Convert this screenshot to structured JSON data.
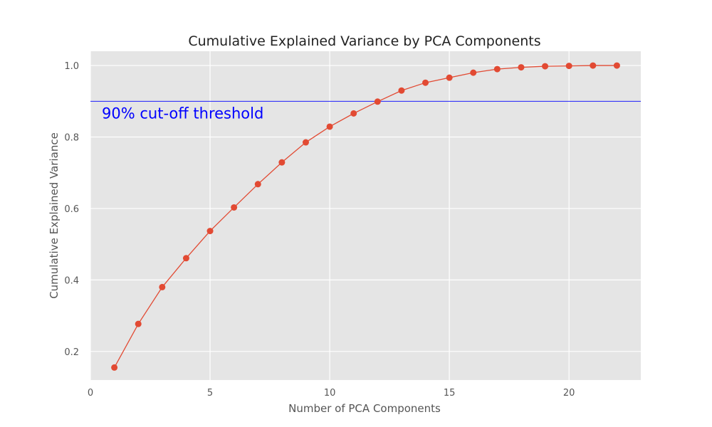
{
  "chart_data": {
    "type": "line",
    "title": "Cumulative Explained Variance by PCA Components",
    "xlabel": "Number of PCA Components",
    "ylabel": "Cumulative Explained Variance",
    "xlim": [
      0,
      23
    ],
    "ylim": [
      0.12,
      1.04
    ],
    "xticks": [
      0,
      5,
      10,
      15,
      20
    ],
    "yticks": [
      0.2,
      0.4,
      0.6,
      0.8,
      1.0
    ],
    "ytick_labels": [
      "0.2",
      "0.4",
      "0.6",
      "0.8",
      "1.0"
    ],
    "grid": true,
    "x": [
      1,
      2,
      3,
      4,
      5,
      6,
      7,
      8,
      9,
      10,
      11,
      12,
      13,
      14,
      15,
      16,
      17,
      18,
      19,
      20,
      21,
      22
    ],
    "series": [
      {
        "values": [
          0.155,
          0.277,
          0.38,
          0.461,
          0.537,
          0.603,
          0.668,
          0.729,
          0.785,
          0.829,
          0.866,
          0.899,
          0.93,
          0.952,
          0.966,
          0.98,
          0.99,
          0.995,
          0.998,
          0.999,
          1.0,
          1.0
        ],
        "color": "#E24A33"
      }
    ],
    "threshold": {
      "value": 0.9,
      "label": "90% cut-off threshold",
      "color": "#0000ff"
    },
    "background_color": "#E5E5E5"
  }
}
